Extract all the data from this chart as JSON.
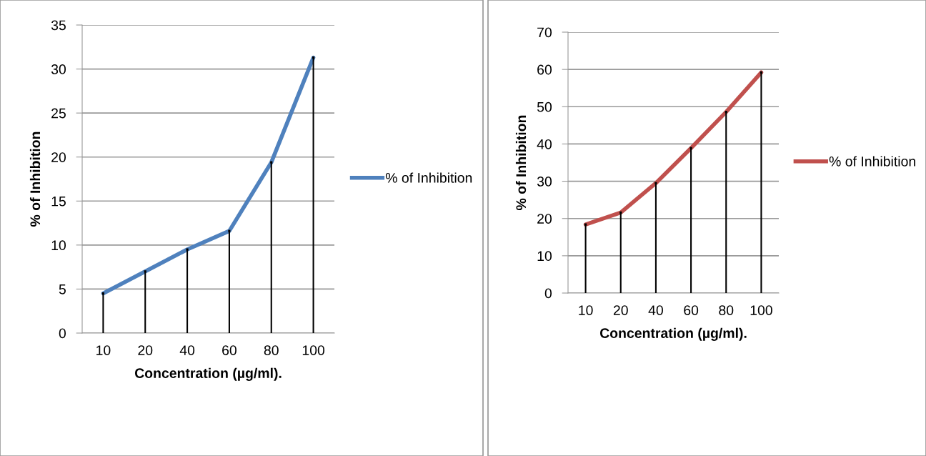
{
  "chart_data": [
    {
      "type": "line",
      "xlabel": "Concentration (µg/ml).",
      "ylabel": "% of Inhibition",
      "categories": [
        "10",
        "20",
        "40",
        "60",
        "80",
        "100"
      ],
      "series": [
        {
          "type": "lollipop",
          "color": "#000000",
          "values": [
            4.5,
            7.0,
            9.5,
            11.6,
            19.4,
            31.3
          ]
        },
        {
          "name": "% of Inhibition",
          "color": "#4f81bd",
          "values": [
            4.5,
            7.0,
            9.5,
            11.6,
            19.4,
            31.3
          ]
        }
      ],
      "ylim": [
        0,
        35
      ],
      "yticks": [
        0,
        5,
        10,
        15,
        20,
        25,
        30,
        35
      ],
      "grid": "y",
      "legend": "right"
    },
    {
      "type": "line",
      "xlabel": "Concentration (µg/ml).",
      "ylabel": "% of Inhibition",
      "categories": [
        "10",
        "20",
        "40",
        "60",
        "80",
        "100"
      ],
      "series": [
        {
          "type": "lollipop",
          "color": "#000000",
          "values": [
            18.4,
            21.6,
            29.5,
            38.9,
            48.6,
            59.2
          ]
        },
        {
          "name": "% of Inhibition",
          "color": "#c0504d",
          "values": [
            18.4,
            21.6,
            29.5,
            38.9,
            48.6,
            59.2
          ]
        }
      ],
      "ylim": [
        0,
        70
      ],
      "yticks": [
        0,
        10,
        20,
        30,
        40,
        50,
        60,
        70
      ],
      "grid": "y",
      "legend": "right"
    }
  ]
}
